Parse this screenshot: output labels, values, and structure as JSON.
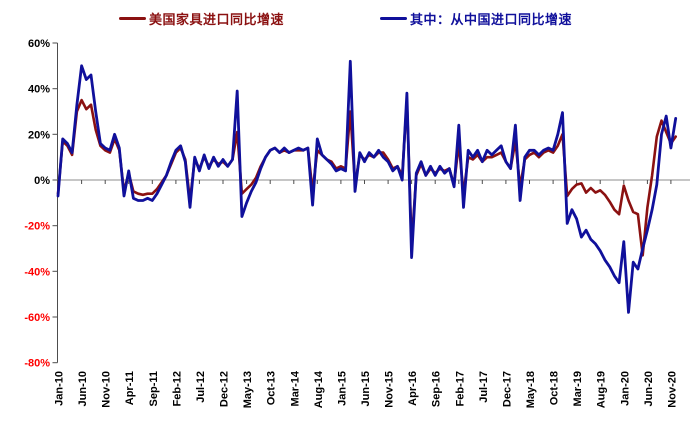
{
  "legend": {
    "series1_label": "美国家具进口同比增速",
    "series2_label": "其中：从中国进口同比增速"
  },
  "chart_data": {
    "type": "line",
    "title": "",
    "xlabel": "",
    "ylabel": "",
    "x_start": "Jan-10",
    "x_end": "Dec-20",
    "x_frequency": "monthly",
    "x_tick_interval_months": 5,
    "x_tick_labels": [
      "Jan-10",
      "Jun-10",
      "Nov-10",
      "Apr-11",
      "Sep-11",
      "Feb-12",
      "Jul-12",
      "Dec-12",
      "May-13",
      "Oct-13",
      "Mar-14",
      "Aug-14",
      "Jan-15",
      "Jun-15",
      "Nov-15",
      "Apr-16",
      "Sep-16",
      "Feb-17",
      "Jul-17",
      "Dec-17",
      "May-18",
      "Oct-18",
      "Mar-19",
      "Aug-19",
      "Jan-20",
      "Jun-20",
      "Nov-20"
    ],
    "y_ticks": [
      60,
      40,
      20,
      0,
      -20,
      -40,
      -60,
      -80
    ],
    "y_tick_format": "percent",
    "ylim": [
      -80,
      60
    ],
    "grid": "none",
    "legend_position": "top-center",
    "colors": {
      "us_series": "#8B1111",
      "china_series": "#10109B",
      "negative_axis_label": "#FF0000",
      "positive_axis_label": "#000000",
      "axis_line": "#4d4d4d",
      "zero_line": "#8c8c8c"
    },
    "series": [
      {
        "name": "美国家具进口同比增速",
        "color_key": "us_series",
        "values": [
          -6,
          17,
          15,
          11,
          30,
          35,
          31,
          33,
          22,
          15,
          13,
          12,
          18,
          13,
          -5,
          3,
          -5,
          -6,
          -6.5,
          -6,
          -6,
          -4,
          -1,
          2,
          7,
          12,
          14,
          9,
          -9,
          9,
          5,
          10,
          6,
          9,
          7,
          8,
          6,
          9,
          21,
          -6,
          -4,
          -2,
          1,
          6,
          10,
          13,
          14,
          12,
          13,
          12,
          13,
          13,
          13,
          14,
          -5,
          13,
          11,
          9,
          8,
          5,
          6,
          5,
          30,
          -2,
          11,
          9,
          11,
          10,
          12,
          12,
          9,
          5,
          6,
          2,
          35,
          -28,
          2,
          7,
          2,
          5,
          3,
          5,
          4,
          5,
          -2,
          16,
          -6,
          10,
          9,
          11,
          8,
          10,
          10,
          11,
          12,
          8,
          5,
          17,
          -3,
          9,
          11,
          12,
          10,
          12,
          13,
          12,
          15,
          20,
          -7,
          -4,
          -2,
          -1.5,
          -5.5,
          -3.5,
          -5.5,
          -4.5,
          -6.5,
          -9.5,
          -13,
          -15,
          -2.5,
          -9,
          -14,
          -15,
          -33,
          -12,
          2,
          19,
          26,
          21,
          16,
          19
        ]
      },
      {
        "name": "其中：从中国进口同比增速",
        "color_key": "china_series",
        "values": [
          -7,
          18,
          16,
          12,
          33,
          50,
          44,
          46,
          30,
          16,
          14,
          13,
          20,
          14,
          -7,
          4,
          -8,
          -9,
          -9,
          -8,
          -9,
          -6,
          -2,
          2,
          8,
          13,
          15,
          8,
          -12,
          10,
          4,
          11,
          5,
          10,
          6,
          9,
          6,
          9,
          39,
          -16,
          -10,
          -5,
          -1,
          5,
          10,
          13,
          14,
          12,
          14,
          12,
          13,
          14,
          13,
          14,
          -11,
          18,
          11,
          9,
          7,
          4,
          5,
          4,
          52,
          -5,
          12,
          8,
          12,
          10,
          13,
          10,
          8,
          4,
          6,
          0,
          38,
          -34,
          3,
          8,
          2,
          6,
          2,
          6,
          3,
          5,
          -3,
          24,
          -12,
          13,
          10,
          13,
          8,
          13,
          11,
          13,
          15,
          8,
          5,
          24,
          -9,
          10,
          13,
          13,
          11,
          13,
          14,
          13,
          20,
          29.5,
          -19,
          -13,
          -17,
          -25,
          -22,
          -26,
          -28,
          -31,
          -35,
          -38,
          -42,
          -45,
          -27,
          -58,
          -36,
          -39,
          -30,
          -22,
          -13,
          -2,
          20,
          28,
          14,
          27
        ]
      }
    ]
  }
}
